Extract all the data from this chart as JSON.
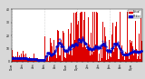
{
  "bg_color": "#d8d8d8",
  "plot_bg_color": "#ffffff",
  "bar_color": "#dd0000",
  "median_color": "#0000cc",
  "ylim": [
    0,
    40
  ],
  "yticks": [
    0,
    10,
    20,
    30,
    40
  ],
  "n_points": 1440,
  "seed": 42,
  "legend_labels": [
    "Actual",
    "Median"
  ],
  "legend_colors": [
    "#dd0000",
    "#0000cc"
  ],
  "grid_interval": 360,
  "grid_color": "#888888",
  "figsize": [
    1.6,
    0.87
  ],
  "dpi": 100
}
